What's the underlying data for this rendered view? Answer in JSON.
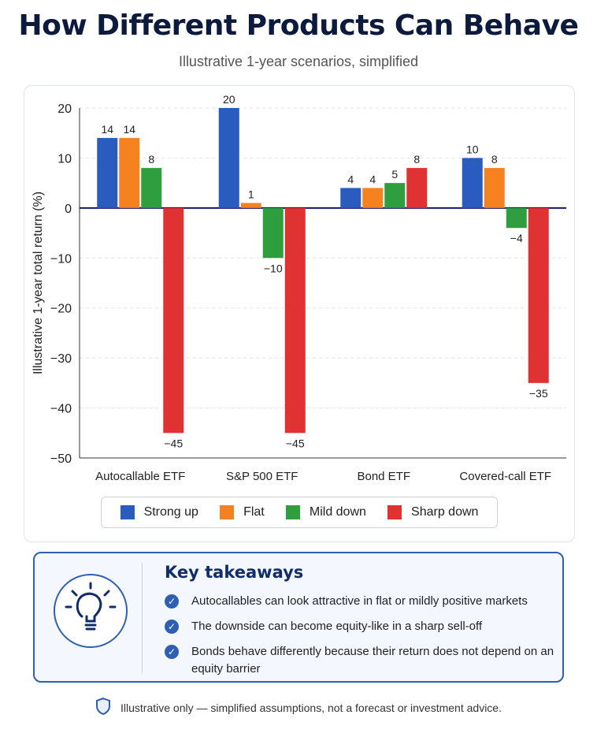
{
  "header": {
    "title": "How Different Products Can Behave",
    "subtitle": "Illustrative 1-year scenarios, simplified"
  },
  "chart_data": {
    "type": "bar",
    "title": "",
    "xlabel": "",
    "ylabel": "Illustrative 1-year total return (%)",
    "ylim": [
      -50,
      20
    ],
    "yticks": [
      20,
      10,
      0,
      -10,
      -20,
      -30,
      -40,
      -50
    ],
    "grid": true,
    "legend_position": "bottom",
    "categories": [
      "Autocallable ETF",
      "S&P 500 ETF",
      "Bond ETF",
      "Covered-call ETF"
    ],
    "series": [
      {
        "name": "Strong up",
        "color": "#2a5cbf",
        "values": [
          14,
          20,
          4,
          10
        ],
        "labels": [
          "14",
          "20",
          "4",
          "10"
        ]
      },
      {
        "name": "Flat",
        "color": "#f5821f",
        "values": [
          14,
          1,
          4,
          8
        ],
        "labels": [
          "14",
          "1",
          "4",
          "8"
        ]
      },
      {
        "name": "Mild down",
        "color": "#2e9e3f",
        "values": [
          8,
          -10,
          5,
          -4
        ],
        "labels": [
          "8",
          "−10",
          "5",
          "−4"
        ]
      },
      {
        "name": "Sharp down",
        "color": "#e03232",
        "values": [
          -45,
          -45,
          8,
          -35
        ],
        "labels": [
          "−45",
          "−45",
          "8",
          "−35"
        ]
      }
    ]
  },
  "takeaways": {
    "title": "Key takeaways",
    "icon": "lightbulb-icon",
    "items": [
      "Autocallables can look attractive in flat or mildly positive markets",
      "The downside can become equity-like in a sharp sell-off",
      "Bonds behave differently because their return does not depend on an equity barrier"
    ]
  },
  "footer": {
    "icon": "shield-icon",
    "note": "Illustrative only — simplified assumptions, not a forecast or investment advice."
  }
}
